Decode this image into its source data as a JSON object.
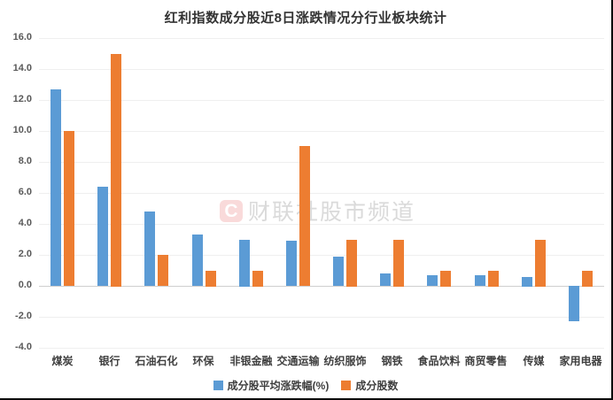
{
  "page": {
    "title": "红利指数成分股近8日涨跌情况分行业板块统计"
  },
  "watermark": {
    "logo_letter": "C",
    "text": "财联社股市频道"
  },
  "chart_data": {
    "type": "bar",
    "title": "红利指数成分股近8日涨跌情况分行业板块统计",
    "categories": [
      "煤炭",
      "银行",
      "石油石化",
      "环保",
      "非银金融",
      "交通运输",
      "纺织服饰",
      "钢铁",
      "食品饮料",
      "商贸零售",
      "传媒",
      "家用电器"
    ],
    "series": [
      {
        "name": "成分股平均涨跌幅(%)",
        "color": "#5B9BD5",
        "values": [
          12.7,
          6.4,
          4.8,
          3.3,
          3.0,
          2.9,
          1.9,
          0.8,
          0.7,
          0.7,
          0.6,
          -2.3
        ]
      },
      {
        "name": "成分股数",
        "color": "#ED7D31",
        "values": [
          10,
          15,
          2,
          1,
          1,
          9,
          3,
          3,
          1,
          1,
          3,
          1
        ]
      }
    ],
    "ylim": [
      -4,
      16
    ],
    "ytick_step": 2,
    "ytick_labels": [
      "16.0",
      "14.0",
      "12.0",
      "10.0",
      "8.0",
      "6.0",
      "4.0",
      "2.0",
      "0.0",
      "-2.0",
      "-4.0"
    ],
    "grid": true,
    "legend_position": "bottom"
  }
}
